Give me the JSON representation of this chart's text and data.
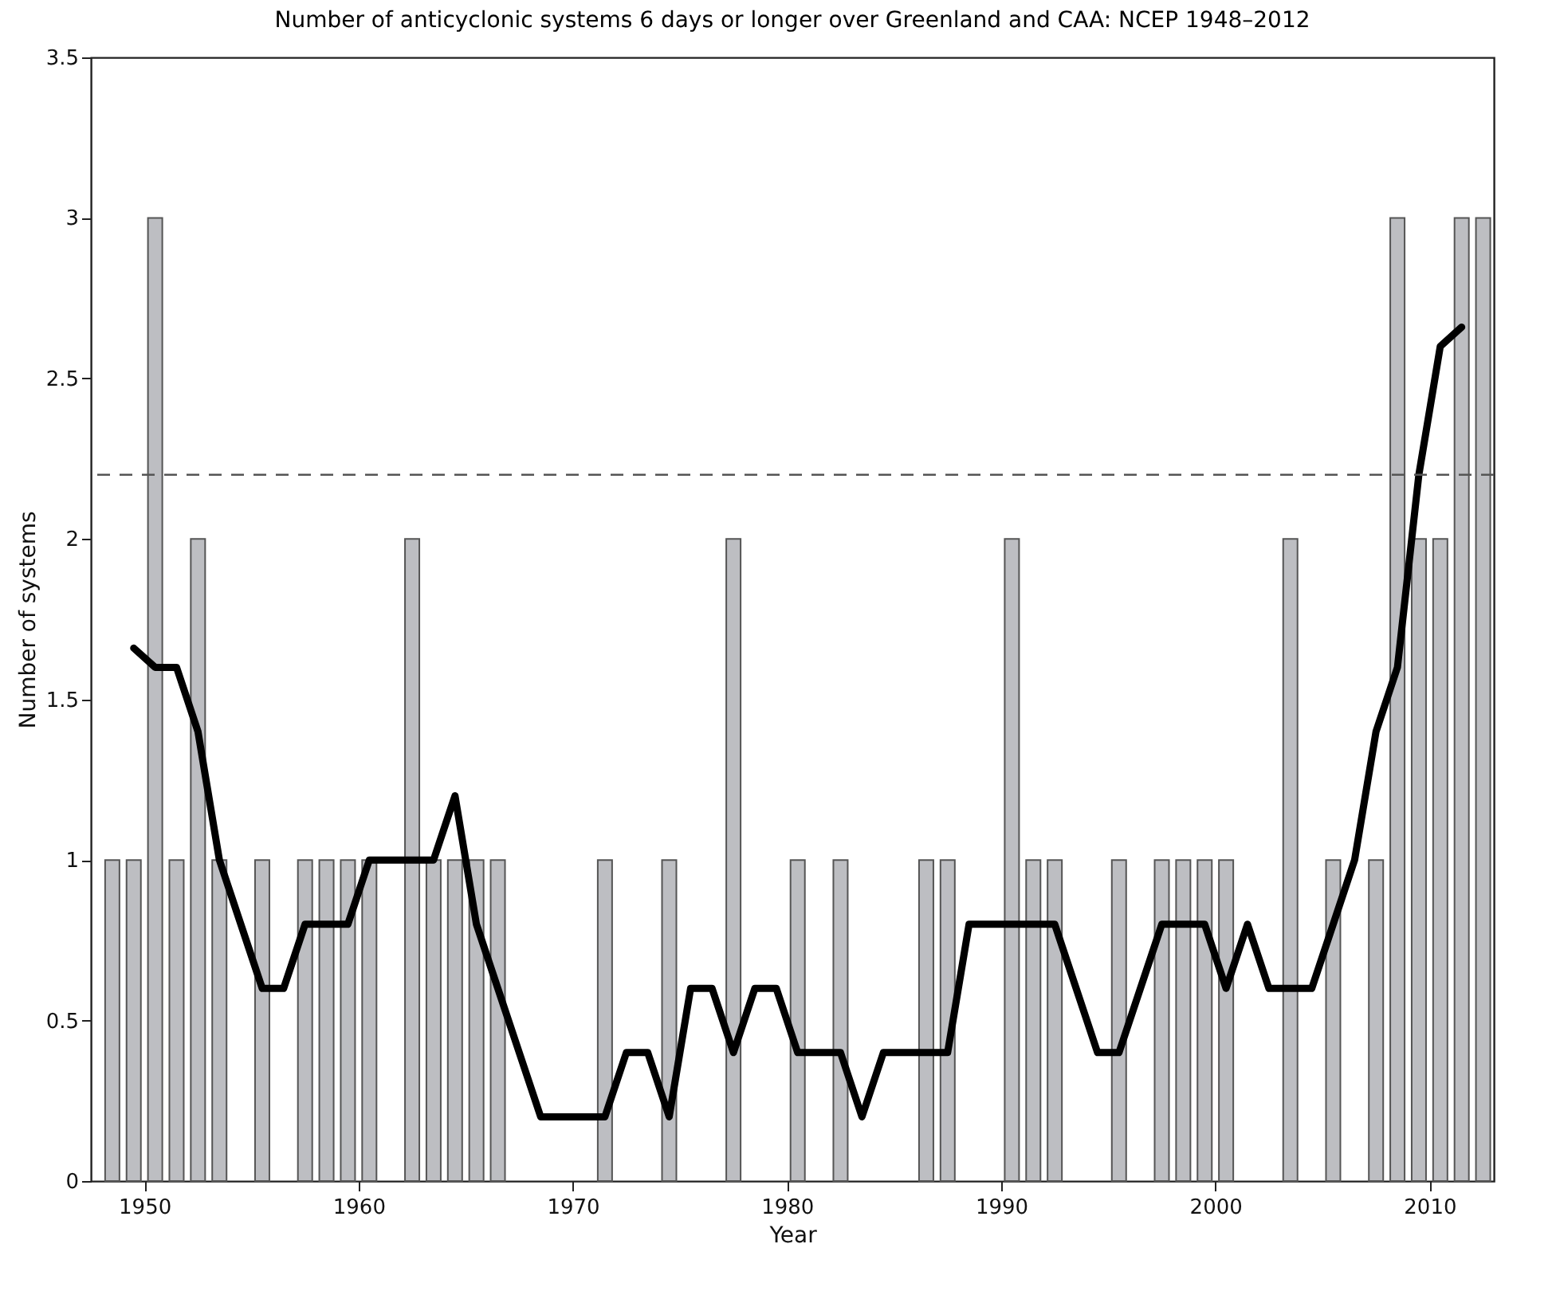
{
  "chart_data": {
    "type": "bar",
    "title": "Number of anticyclonic systems 6 days or longer over Greenland and CAA: NCEP 1948–2012",
    "xlabel": "Year",
    "ylabel": "Number of systems",
    "x": [
      1948.5,
      1949.5,
      1950.5,
      1951.5,
      1952.5,
      1953.5,
      1954.5,
      1955.5,
      1956.5,
      1957.5,
      1958.5,
      1959.5,
      1960.5,
      1961.5,
      1962.5,
      1963.5,
      1964.5,
      1965.5,
      1966.5,
      1967.5,
      1968.5,
      1969.5,
      1970.5,
      1971.5,
      1972.5,
      1973.5,
      1974.5,
      1975.5,
      1976.5,
      1977.5,
      1978.5,
      1979.5,
      1980.5,
      1981.5,
      1982.5,
      1983.5,
      1984.5,
      1985.5,
      1986.5,
      1987.5,
      1988.5,
      1989.5,
      1990.5,
      1991.5,
      1992.5,
      1993.5,
      1994.5,
      1995.5,
      1996.5,
      1997.5,
      1998.5,
      1999.5,
      2000.5,
      2001.5,
      2002.5,
      2003.5,
      2004.5,
      2005.5,
      2006.5,
      2007.5,
      2008.5,
      2009.5,
      2010.5,
      2011.5,
      2012.5
    ],
    "series": [
      {
        "color": "#bdbec2",
        "values": [
          1,
          1,
          3,
          1,
          2,
          1,
          0,
          1,
          0,
          1,
          1,
          1,
          1,
          0,
          2,
          1,
          1,
          1,
          1,
          0,
          0,
          0,
          0,
          1,
          0,
          0,
          1,
          0,
          0,
          2,
          0,
          0,
          1,
          0,
          1,
          0,
          0,
          0,
          1,
          1,
          0,
          0,
          2,
          1,
          1,
          0,
          0,
          1,
          0,
          1,
          1,
          1,
          1,
          0,
          0,
          2,
          0,
          1,
          0,
          1,
          3,
          2,
          2,
          3,
          3
        ]
      },
      {
        "type": "line",
        "color": "#000000",
        "x": [
          1949.5,
          1950.5,
          1951.5,
          1952.5,
          1953.5,
          1954.5,
          1955.5,
          1956.5,
          1957.5,
          1958.5,
          1959.5,
          1960.5,
          1961.5,
          1962.5,
          1963.5,
          1964.5,
          1965.5,
          1966.5,
          1967.5,
          1968.5,
          1969.5,
          1970.5,
          1971.5,
          1972.5,
          1973.5,
          1974.5,
          1975.5,
          1976.5,
          1977.5,
          1978.5,
          1979.5,
          1980.5,
          1981.5,
          1982.5,
          1983.5,
          1984.5,
          1985.5,
          1986.5,
          1987.5,
          1988.5,
          1989.5,
          1990.5,
          1991.5,
          1992.5,
          1993.5,
          1994.5,
          1995.5,
          1996.5,
          1997.5,
          1998.5,
          1999.5,
          2000.5,
          2001.5,
          2002.5,
          2003.5,
          2004.5,
          2005.5,
          2006.5,
          2007.5,
          2008.5,
          2009.5,
          2010.5,
          2011.5
        ],
        "values": [
          1.66,
          1.6,
          1.6,
          1.4,
          1.0,
          0.8,
          0.6,
          0.6,
          0.8,
          0.8,
          0.8,
          1.0,
          1.0,
          1.0,
          1.0,
          1.2,
          0.8,
          0.6,
          0.4,
          0.2,
          0.2,
          0.2,
          0.2,
          0.4,
          0.4,
          0.2,
          0.6,
          0.6,
          0.4,
          0.6,
          0.6,
          0.4,
          0.4,
          0.4,
          0.2,
          0.4,
          0.4,
          0.4,
          0.4,
          0.8,
          0.8,
          0.8,
          0.8,
          0.8,
          0.6,
          0.4,
          0.4,
          0.6,
          0.8,
          0.8,
          0.8,
          0.6,
          0.8,
          0.6,
          0.6,
          0.6,
          0.8,
          1.0,
          1.4,
          1.6,
          2.2,
          2.6,
          2.66
        ]
      }
    ],
    "ref_lines": [
      {
        "axis": "y",
        "value": 2.2,
        "color": "#555555",
        "line_style": "dashed"
      }
    ],
    "xlim": [
      1947.5,
      2013
    ],
    "xticks": [
      1950,
      1960,
      1970,
      1980,
      1990,
      2000,
      2010
    ],
    "ylim": [
      0,
      3.5
    ],
    "yticks": [
      0,
      0.5,
      1,
      1.5,
      2,
      2.5,
      3,
      3.5
    ],
    "grid": false,
    "legend": false
  }
}
